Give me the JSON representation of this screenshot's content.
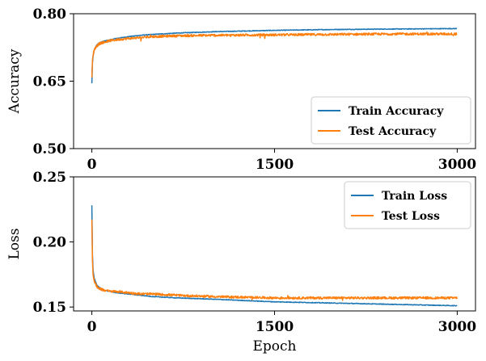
{
  "chart_data": [
    {
      "type": "line",
      "xlabel": "",
      "ylabel": "Accuracy",
      "xlim": [
        -150,
        3150
      ],
      "ylim": [
        0.5,
        0.8
      ],
      "xticks": [
        0,
        1500,
        3000
      ],
      "xtick_labels": [
        "0",
        "1500",
        "3000"
      ],
      "yticks": [
        0.5,
        0.65,
        0.8
      ],
      "ytick_labels": [
        "0.50",
        "0.65",
        "0.80"
      ],
      "grid": false,
      "legend_position": "lower-right",
      "series": [
        {
          "name": "Train Accuracy",
          "color": "#1f77b4",
          "x": [
            0,
            5,
            10,
            20,
            40,
            60,
            100,
            150,
            200,
            300,
            400,
            500,
            700,
            1000,
            1500,
            2000,
            2500,
            3000
          ],
          "y": [
            0.645,
            0.69,
            0.705,
            0.72,
            0.73,
            0.735,
            0.739,
            0.742,
            0.745,
            0.749,
            0.752,
            0.754,
            0.757,
            0.76,
            0.763,
            0.765,
            0.766,
            0.767
          ]
        },
        {
          "name": "Test Accuracy",
          "color": "#ff7f0e",
          "x": [
            0,
            5,
            10,
            20,
            40,
            60,
            100,
            150,
            200,
            300,
            400,
            500,
            700,
            1000,
            1500,
            2000,
            2500,
            3000
          ],
          "y": [
            0.66,
            0.695,
            0.708,
            0.72,
            0.728,
            0.733,
            0.737,
            0.74,
            0.742,
            0.745,
            0.747,
            0.749,
            0.751,
            0.752,
            0.753,
            0.754,
            0.755,
            0.755
          ]
        }
      ]
    },
    {
      "type": "line",
      "xlabel": "Epoch",
      "ylabel": "Loss",
      "xlim": [
        -150,
        3150
      ],
      "ylim": [
        0.147,
        0.25
      ],
      "xticks": [
        0,
        1500,
        3000
      ],
      "xtick_labels": [
        "0",
        "1500",
        "3000"
      ],
      "yticks": [
        0.15,
        0.2,
        0.25
      ],
      "ytick_labels": [
        "0.15",
        "0.20",
        "0.25"
      ],
      "grid": false,
      "legend_position": "upper-right",
      "series": [
        {
          "name": "Train Loss",
          "color": "#1f77b4",
          "x": [
            0,
            5,
            10,
            20,
            40,
            60,
            100,
            150,
            200,
            300,
            400,
            500,
            700,
            1000,
            1500,
            2000,
            2500,
            3000
          ],
          "y": [
            0.228,
            0.19,
            0.178,
            0.172,
            0.167,
            0.165,
            0.163,
            0.162,
            0.161,
            0.16,
            0.159,
            0.158,
            0.157,
            0.156,
            0.154,
            0.153,
            0.152,
            0.151
          ]
        },
        {
          "name": "Test Loss",
          "color": "#ff7f0e",
          "x": [
            0,
            5,
            10,
            20,
            40,
            60,
            100,
            150,
            200,
            300,
            400,
            500,
            700,
            1000,
            1500,
            2000,
            2500,
            3000
          ],
          "y": [
            0.218,
            0.185,
            0.175,
            0.17,
            0.166,
            0.164,
            0.163,
            0.162,
            0.162,
            0.161,
            0.16,
            0.16,
            0.159,
            0.158,
            0.157,
            0.157,
            0.157,
            0.157
          ]
        }
      ]
    }
  ]
}
